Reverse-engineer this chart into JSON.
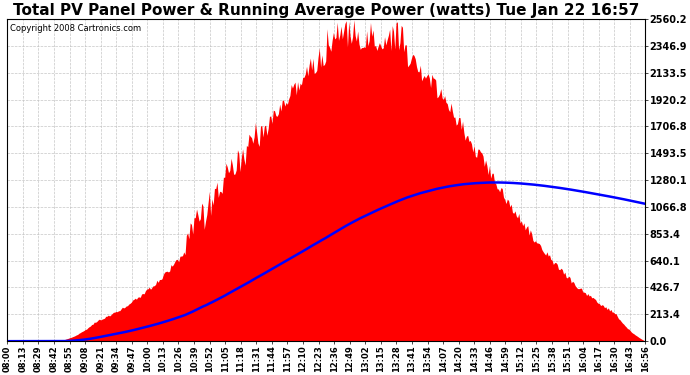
{
  "title": "Total PV Panel Power & Running Average Power (watts) Tue Jan 22 16:57",
  "copyright": "Copyright 2008 Cartronics.com",
  "ymax": 2560.2,
  "ymin": 0.0,
  "ytick_interval": 213.4,
  "ytick_labels": [
    "0.0",
    "213.4",
    "426.7",
    "640.1",
    "853.4",
    "1066.8",
    "1280.1",
    "1493.5",
    "1706.8",
    "1920.2",
    "2133.5",
    "2346.9",
    "2560.2"
  ],
  "background_color": "#ffffff",
  "plot_bg_color": "#ffffff",
  "bar_color": "#ff0000",
  "line_color": "#0000ff",
  "grid_color": "#c0c0c0",
  "title_fontsize": 11,
  "x_tick_labels": [
    "08:00",
    "08:13",
    "08:29",
    "08:42",
    "08:55",
    "09:08",
    "09:21",
    "09:34",
    "09:47",
    "10:00",
    "10:13",
    "10:26",
    "10:39",
    "10:52",
    "11:05",
    "11:18",
    "11:31",
    "11:44",
    "11:57",
    "12:10",
    "12:23",
    "12:36",
    "12:49",
    "13:02",
    "13:15",
    "13:28",
    "13:41",
    "13:54",
    "14:07",
    "14:20",
    "14:33",
    "14:46",
    "14:59",
    "15:12",
    "15:25",
    "15:38",
    "15:51",
    "16:04",
    "16:17",
    "16:30",
    "16:43",
    "16:56"
  ]
}
